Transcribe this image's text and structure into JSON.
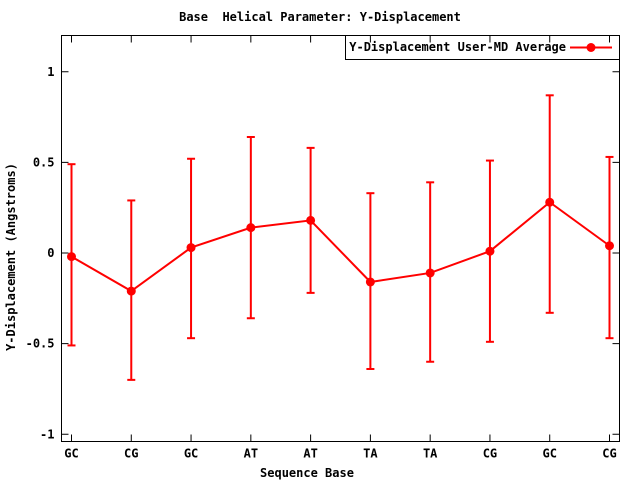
{
  "chart_data": {
    "type": "line",
    "title": "Base  Helical Parameter: Y-Displacement",
    "xlabel": "Sequence Base",
    "ylabel": "Y-Displacement (Angstroms)",
    "categories": [
      "GC",
      "CG",
      "GC",
      "AT",
      "AT",
      "TA",
      "TA",
      "CG",
      "GC",
      "CG"
    ],
    "series": [
      {
        "name": "Y-Displacement User-MD Average",
        "color": "#ff0000",
        "marker": "filled-circle",
        "values": [
          -0.02,
          -0.21,
          0.03,
          0.14,
          0.18,
          -0.16,
          -0.11,
          0.01,
          0.28,
          0.04
        ],
        "err_high": [
          0.49,
          0.29,
          0.52,
          0.64,
          0.58,
          0.33,
          0.39,
          0.51,
          0.87,
          0.53
        ],
        "err_low": [
          -0.51,
          -0.7,
          -0.47,
          -0.36,
          -0.22,
          -0.64,
          -0.6,
          -0.49,
          -0.33,
          -0.47
        ]
      }
    ],
    "yticks": [
      {
        "value": 1,
        "label": "1"
      },
      {
        "value": 0.5,
        "label": "0.5"
      },
      {
        "value": 0,
        "label": "0"
      },
      {
        "value": -0.5,
        "label": "-0.5"
      },
      {
        "value": -1,
        "label": "-1"
      }
    ],
    "ylim": [
      -1.04,
      1.2
    ],
    "grid": false,
    "error_bars": true,
    "legend_position": "top-right",
    "legend_boxed": true,
    "axis_color": "#000000",
    "background_color": "#ffffff"
  }
}
